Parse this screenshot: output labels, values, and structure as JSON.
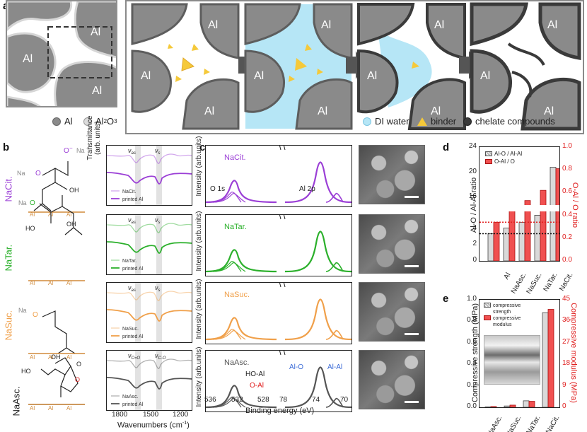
{
  "panels": {
    "a": {
      "letter": "a",
      "grain_label": "Al",
      "legend": {
        "al": "Al",
        "al2o3": "Al",
        "al2o3_sub2": "2",
        "al2o3_o": "O",
        "al2o3_sub3": "3",
        "water": "DI water",
        "binder": "binder",
        "chelate": "chelate compounds"
      }
    },
    "b": {
      "letter": "b",
      "rows": [
        {
          "name": "NaCit.",
          "color": "#9b3fd6",
          "legend_ref": "NaCit.",
          "legend_printed": "printed Al",
          "band1": "ν",
          "band1_sub": "as",
          "band2": "ν",
          "band2_sub": "s"
        },
        {
          "name": "NaTar.",
          "color": "#2bb02b",
          "legend_ref": "NaTar.",
          "legend_printed": "printed Al",
          "band1": "ν",
          "band1_sub": "as",
          "band2": "ν",
          "band2_sub": "s"
        },
        {
          "name": "NaSuc.",
          "color": "#f0a04a",
          "legend_ref": "NaSuc.",
          "legend_printed": "printed Al",
          "band1": "ν",
          "band1_sub": "as",
          "band2": "ν",
          "band2_sub": "s"
        },
        {
          "name": "NaAsc.",
          "color": "#555555",
          "legend_ref": "NaAsc.",
          "legend_printed": "printed Al",
          "band1": "ν",
          "band1_sub": "C=O",
          "band2": "ν",
          "band2_sub": "C-O"
        }
      ],
      "ylabel": "Transmittance",
      "ylabel2": "(arb. units)",
      "xlabel": "Wavenumbers (cm",
      "xlabel_sup": "-1",
      "xlabel_end": ")",
      "xticks": [
        "1800",
        "1500",
        "1200"
      ],
      "chem": {
        "na": "Na",
        "o": "O",
        "plus": "+",
        "minus": "−",
        "oh": "OH",
        "al": "Al",
        "ho": "HO"
      }
    },
    "c": {
      "letter": "c",
      "ylabel": "Intensity (arb.units)",
      "xlabel": "Binding energy (eV)",
      "xticks": [
        "536",
        "532",
        "528",
        "78",
        "74",
        "70"
      ],
      "o1s": "O 1s",
      "al2p": "Al 2p",
      "labels": {
        "hoal": "HO-Al",
        "oal": "O-Al",
        "alo": "Al-O",
        "alal": "Al-Al"
      }
    },
    "d": {
      "letter": "d",
      "ylabel_left": "Al-O / Al-Al ratio",
      "ylabel_right": "O-Al / O ratio",
      "legend": [
        "Al-O / Al-Al",
        "O-Al / O"
      ],
      "left_ticks": [
        "24",
        "20",
        "16",
        "4",
        "2",
        "0"
      ],
      "right_ticks": [
        "1.0",
        "0.8",
        "0.6",
        "0.4",
        "0.2",
        "0.0"
      ],
      "categories": [
        "Al",
        "NaAsc.",
        "NaSuc.",
        "NaTar.",
        "NaCit."
      ]
    },
    "e": {
      "letter": "e",
      "ylabel_left": "Compressive strength (MPa)",
      "ylabel_right": "Compressive modulus (MPa)",
      "legend": [
        "compressive strength",
        "compressive modulus"
      ],
      "left_ticks": [
        "1.0",
        "0.8",
        "0.6",
        "0.4",
        "0.2",
        "0.0"
      ],
      "right_ticks": [
        "45",
        "36",
        "27",
        "18",
        "9",
        "0"
      ],
      "categories": [
        "NaAsc.",
        "NaSuc.",
        "NaTar.",
        "NaCit."
      ]
    }
  },
  "chart_data": [
    {
      "type": "bar",
      "panel": "d",
      "title": "",
      "categories": [
        "Al",
        "NaAsc.",
        "NaSuc.",
        "NaTar.",
        "NaCit."
      ],
      "series": [
        {
          "name": "Al-O / Al-Al",
          "axis": "left",
          "values": [
            3.4,
            4.1,
            4.8,
            5.7,
            20.8
          ]
        },
        {
          "name": "O-Al / O",
          "axis": "right",
          "values": [
            0.34,
            0.46,
            0.53,
            0.62,
            0.81
          ]
        }
      ],
      "xlabel": "",
      "ylabel": "Al-O / Al-Al ratio",
      "ylabel_right": "O-Al / O ratio",
      "ylim_left_lower": [
        0,
        6
      ],
      "ylim_left_upper": [
        15,
        24
      ],
      "ylim_right": [
        0,
        1.0
      ],
      "reference_lines": [
        {
          "axis": "right",
          "value": 0.34,
          "color": "#e02020"
        },
        {
          "axis": "left",
          "value": 3.4,
          "color": "#111111"
        }
      ]
    },
    {
      "type": "bar",
      "panel": "e",
      "title": "",
      "categories": [
        "NaAsc.",
        "NaSuc.",
        "NaTar.",
        "NaCit."
      ],
      "series": [
        {
          "name": "compressive strength",
          "axis": "left",
          "values": [
            0.003,
            0.012,
            0.06,
            0.88
          ]
        },
        {
          "name": "compressive modulus",
          "axis": "right",
          "values": [
            0.3,
            0.9,
            2.5,
            41
          ]
        }
      ],
      "xlabel": "",
      "ylabel": "Compressive strength (MPa)",
      "ylabel_right": "Compressive modulus (MPa)",
      "ylim_left": [
        0,
        1.0
      ],
      "ylim_right": [
        0,
        45
      ]
    }
  ]
}
